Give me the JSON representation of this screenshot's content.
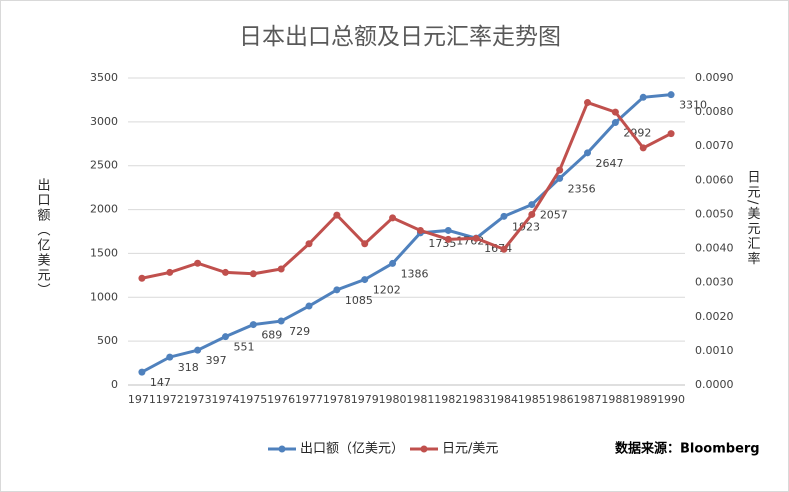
{
  "chart_data": {
    "type": "line",
    "title": "日本出口总额及日元汇率走势图",
    "y_label": "出口额（亿美元）",
    "y2_label": "日元/美元汇率",
    "source": "数据来源：Bloomberg",
    "categories": [
      "1971",
      "1972",
      "1973",
      "1974",
      "1975",
      "1976",
      "1977",
      "1978",
      "1979",
      "1980",
      "1981",
      "1982",
      "1983",
      "1984",
      "1985",
      "1986",
      "1987",
      "1988",
      "1989",
      "1990"
    ],
    "series": [
      {
        "name": "出口额（亿美元）",
        "color": "#4f81bd",
        "values": [
          147,
          318,
          397,
          551,
          689,
          729,
          900,
          1085,
          1202,
          1386,
          1735,
          1762,
          1674,
          1923,
          2057,
          2356,
          2647,
          2992,
          3280,
          3310
        ],
        "value_labels": [
          "147",
          "318",
          "397",
          "551",
          "689",
          "729",
          null,
          "1085",
          "1202",
          "1386",
          "1735",
          "1762",
          "1674",
          "1923",
          "2057",
          "2356",
          "2647",
          "2992",
          null,
          "3310"
        ]
      },
      {
        "name": "日元/美元",
        "color": "#c0504d",
        "axis": "y2",
        "values": [
          0.00313,
          0.0033,
          0.00357,
          0.0033,
          0.00326,
          0.0034,
          0.00414,
          0.00498,
          0.00414,
          0.0049,
          0.00453,
          0.00427,
          0.0043,
          0.00398,
          0.005,
          0.0063,
          0.00828,
          0.008,
          0.00695,
          0.00737
        ]
      }
    ],
    "ylim": [
      0,
      3500
    ],
    "yticks": [
      0,
      500,
      1000,
      1500,
      2000,
      2500,
      3000,
      3500
    ],
    "y2lim": [
      0,
      0.009
    ],
    "y2ticks": [
      {
        "value": 0,
        "label": "0.0000"
      },
      {
        "value": 0.001,
        "label": "0.0010"
      },
      {
        "value": 0.002,
        "label": "0.0020"
      },
      {
        "value": 0.003,
        "label": "0.0030"
      },
      {
        "value": 0.004,
        "label": "0.0040"
      },
      {
        "value": 0.005,
        "label": "0.0050"
      },
      {
        "value": 0.006,
        "label": "0.0060"
      },
      {
        "value": 0.007,
        "label": "0.0070"
      },
      {
        "value": 0.008,
        "label": "0.0080"
      },
      {
        "value": 0.009,
        "label": "0.0090"
      }
    ],
    "grid": true
  }
}
